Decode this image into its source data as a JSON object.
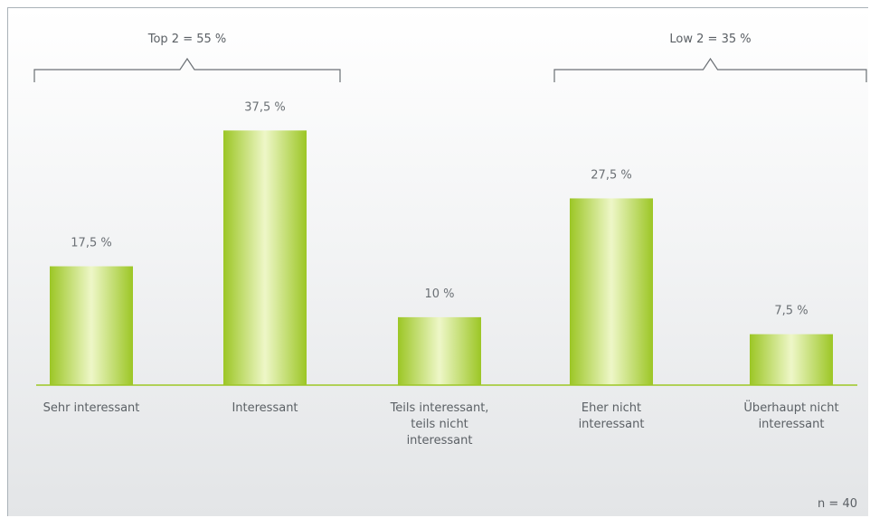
{
  "chart_data": {
    "type": "bar",
    "categories": [
      [
        "Sehr interessant"
      ],
      [
        "Interessant"
      ],
      [
        "Teils interessant,",
        "teils nicht",
        "interessant"
      ],
      [
        "Eher nicht",
        "interessant"
      ],
      [
        "Überhaupt nicht",
        "interessant"
      ]
    ],
    "values": [
      17.5,
      37.5,
      10,
      27.5,
      7.5
    ],
    "value_labels": [
      "17,5 %",
      "37,5 %",
      "10 %",
      "27,5 %",
      "7,5 %"
    ],
    "ylim": [
      0,
      45
    ],
    "bar_color": "#a8cd2c",
    "bar_highlight": "#eef7c8",
    "brackets": [
      {
        "label": "Top 2 = 55 %",
        "from_category": 0,
        "to_category": 1
      },
      {
        "label": "Low 2 = 35 %",
        "from_category": 3,
        "to_category": 4
      }
    ],
    "note": "n = 40",
    "grid": false
  }
}
